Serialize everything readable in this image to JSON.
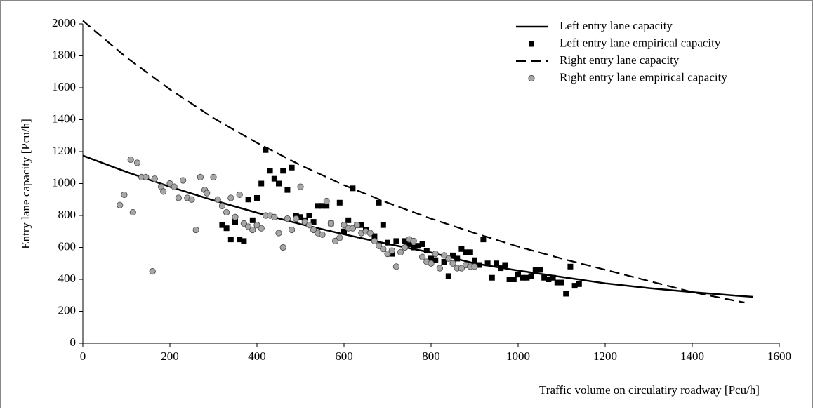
{
  "chart_data": {
    "type": "scatter",
    "xlabel": "Traffic volume on circulatiry roadway [Pcu/h]",
    "ylabel": "Entry lane capacity [Pcu/h]",
    "xlim": [
      0,
      1600
    ],
    "xticks": [
      0,
      200,
      400,
      600,
      800,
      1000,
      1200,
      1400,
      1600
    ],
    "ylim": [
      0,
      2000
    ],
    "yticks": [
      0,
      200,
      400,
      600,
      800,
      1000,
      1200,
      1400,
      1600,
      1800,
      2000
    ],
    "grid": false,
    "legend": "upper right",
    "series": [
      {
        "name": "Left entry lane capacity",
        "color": "#000000",
        "style": "solid",
        "x": [
          0,
          100,
          200,
          300,
          400,
          500,
          600,
          700,
          800,
          900,
          1000,
          1100,
          1200,
          1300,
          1400,
          1500,
          1540
        ],
        "values": [
          1175,
          1073,
          980,
          895,
          817,
          746,
          682,
          622,
          568,
          500,
          455,
          415,
          375,
          345,
          320,
          298,
          290
        ]
      },
      {
        "name": "Left entry lane empirical capacity",
        "color": "#000000",
        "style": "square",
        "x": [
          320,
          330,
          340,
          350,
          360,
          370,
          380,
          390,
          400,
          410,
          420,
          430,
          440,
          450,
          460,
          470,
          480,
          490,
          500,
          510,
          520,
          530,
          540,
          550,
          560,
          570,
          590,
          600,
          610,
          620,
          630,
          640,
          650,
          670,
          680,
          690,
          700,
          710,
          720,
          740,
          750,
          760,
          770,
          780,
          790,
          800,
          810,
          830,
          840,
          850,
          860,
          870,
          880,
          890,
          900,
          910,
          920,
          930,
          940,
          950,
          960,
          970,
          980,
          990,
          1000,
          1010,
          1020,
          1030,
          1040,
          1050,
          1060,
          1070,
          1080,
          1090,
          1100,
          1110,
          1120,
          1130,
          1140
        ],
        "values": [
          740,
          720,
          650,
          760,
          650,
          640,
          900,
          770,
          910,
          1000,
          1210,
          1080,
          1030,
          1000,
          1080,
          960,
          1100,
          800,
          790,
          770,
          800,
          760,
          860,
          860,
          860,
          750,
          880,
          700,
          770,
          970,
          740,
          740,
          710,
          670,
          880,
          740,
          630,
          560,
          640,
          640,
          620,
          600,
          610,
          620,
          580,
          530,
          520,
          510,
          420,
          550,
          530,
          590,
          570,
          570,
          520,
          490,
          650,
          500,
          410,
          500,
          470,
          490,
          400,
          400,
          430,
          410,
          410,
          420,
          460,
          460,
          410,
          400,
          410,
          380,
          380,
          310,
          480,
          360,
          370
        ]
      },
      {
        "name": "Right entry lane capacity",
        "color": "#000000",
        "style": "dashed",
        "x": [
          0,
          100,
          200,
          300,
          400,
          500,
          600,
          700,
          800,
          900,
          1000,
          1100,
          1200,
          1300,
          1400,
          1500,
          1520
        ],
        "values": [
          2020,
          1790,
          1590,
          1410,
          1255,
          1115,
          990,
          880,
          780,
          690,
          605,
          530,
          460,
          390,
          320,
          265,
          255
        ]
      },
      {
        "name": "Right entry lane empirical capacity",
        "color": "#a6a6a6",
        "style": "circle",
        "x": [
          85,
          95,
          110,
          115,
          125,
          135,
          145,
          160,
          165,
          180,
          185,
          200,
          210,
          220,
          230,
          240,
          250,
          260,
          270,
          280,
          285,
          300,
          310,
          320,
          330,
          340,
          350,
          360,
          370,
          380,
          390,
          400,
          410,
          420,
          430,
          440,
          450,
          460,
          470,
          480,
          490,
          500,
          510,
          520,
          530,
          540,
          550,
          560,
          570,
          580,
          590,
          600,
          610,
          620,
          630,
          640,
          650,
          660,
          670,
          680,
          690,
          700,
          710,
          720,
          730,
          740,
          750,
          760,
          780,
          790,
          800,
          810,
          820,
          830,
          840,
          850,
          860,
          870,
          880,
          890,
          900
        ],
        "values": [
          865,
          930,
          1150,
          820,
          1130,
          1040,
          1040,
          450,
          1030,
          980,
          950,
          1000,
          980,
          910,
          1020,
          910,
          900,
          710,
          1040,
          960,
          940,
          1040,
          900,
          860,
          820,
          910,
          790,
          930,
          750,
          730,
          710,
          740,
          720,
          800,
          800,
          790,
          690,
          600,
          780,
          710,
          780,
          980,
          760,
          740,
          710,
          690,
          680,
          890,
          750,
          640,
          660,
          740,
          720,
          720,
          740,
          690,
          700,
          690,
          640,
          610,
          590,
          560,
          580,
          480,
          570,
          600,
          650,
          640,
          540,
          510,
          500,
          560,
          470,
          550,
          530,
          500,
          470,
          470,
          490,
          480,
          480
        ]
      }
    ]
  }
}
